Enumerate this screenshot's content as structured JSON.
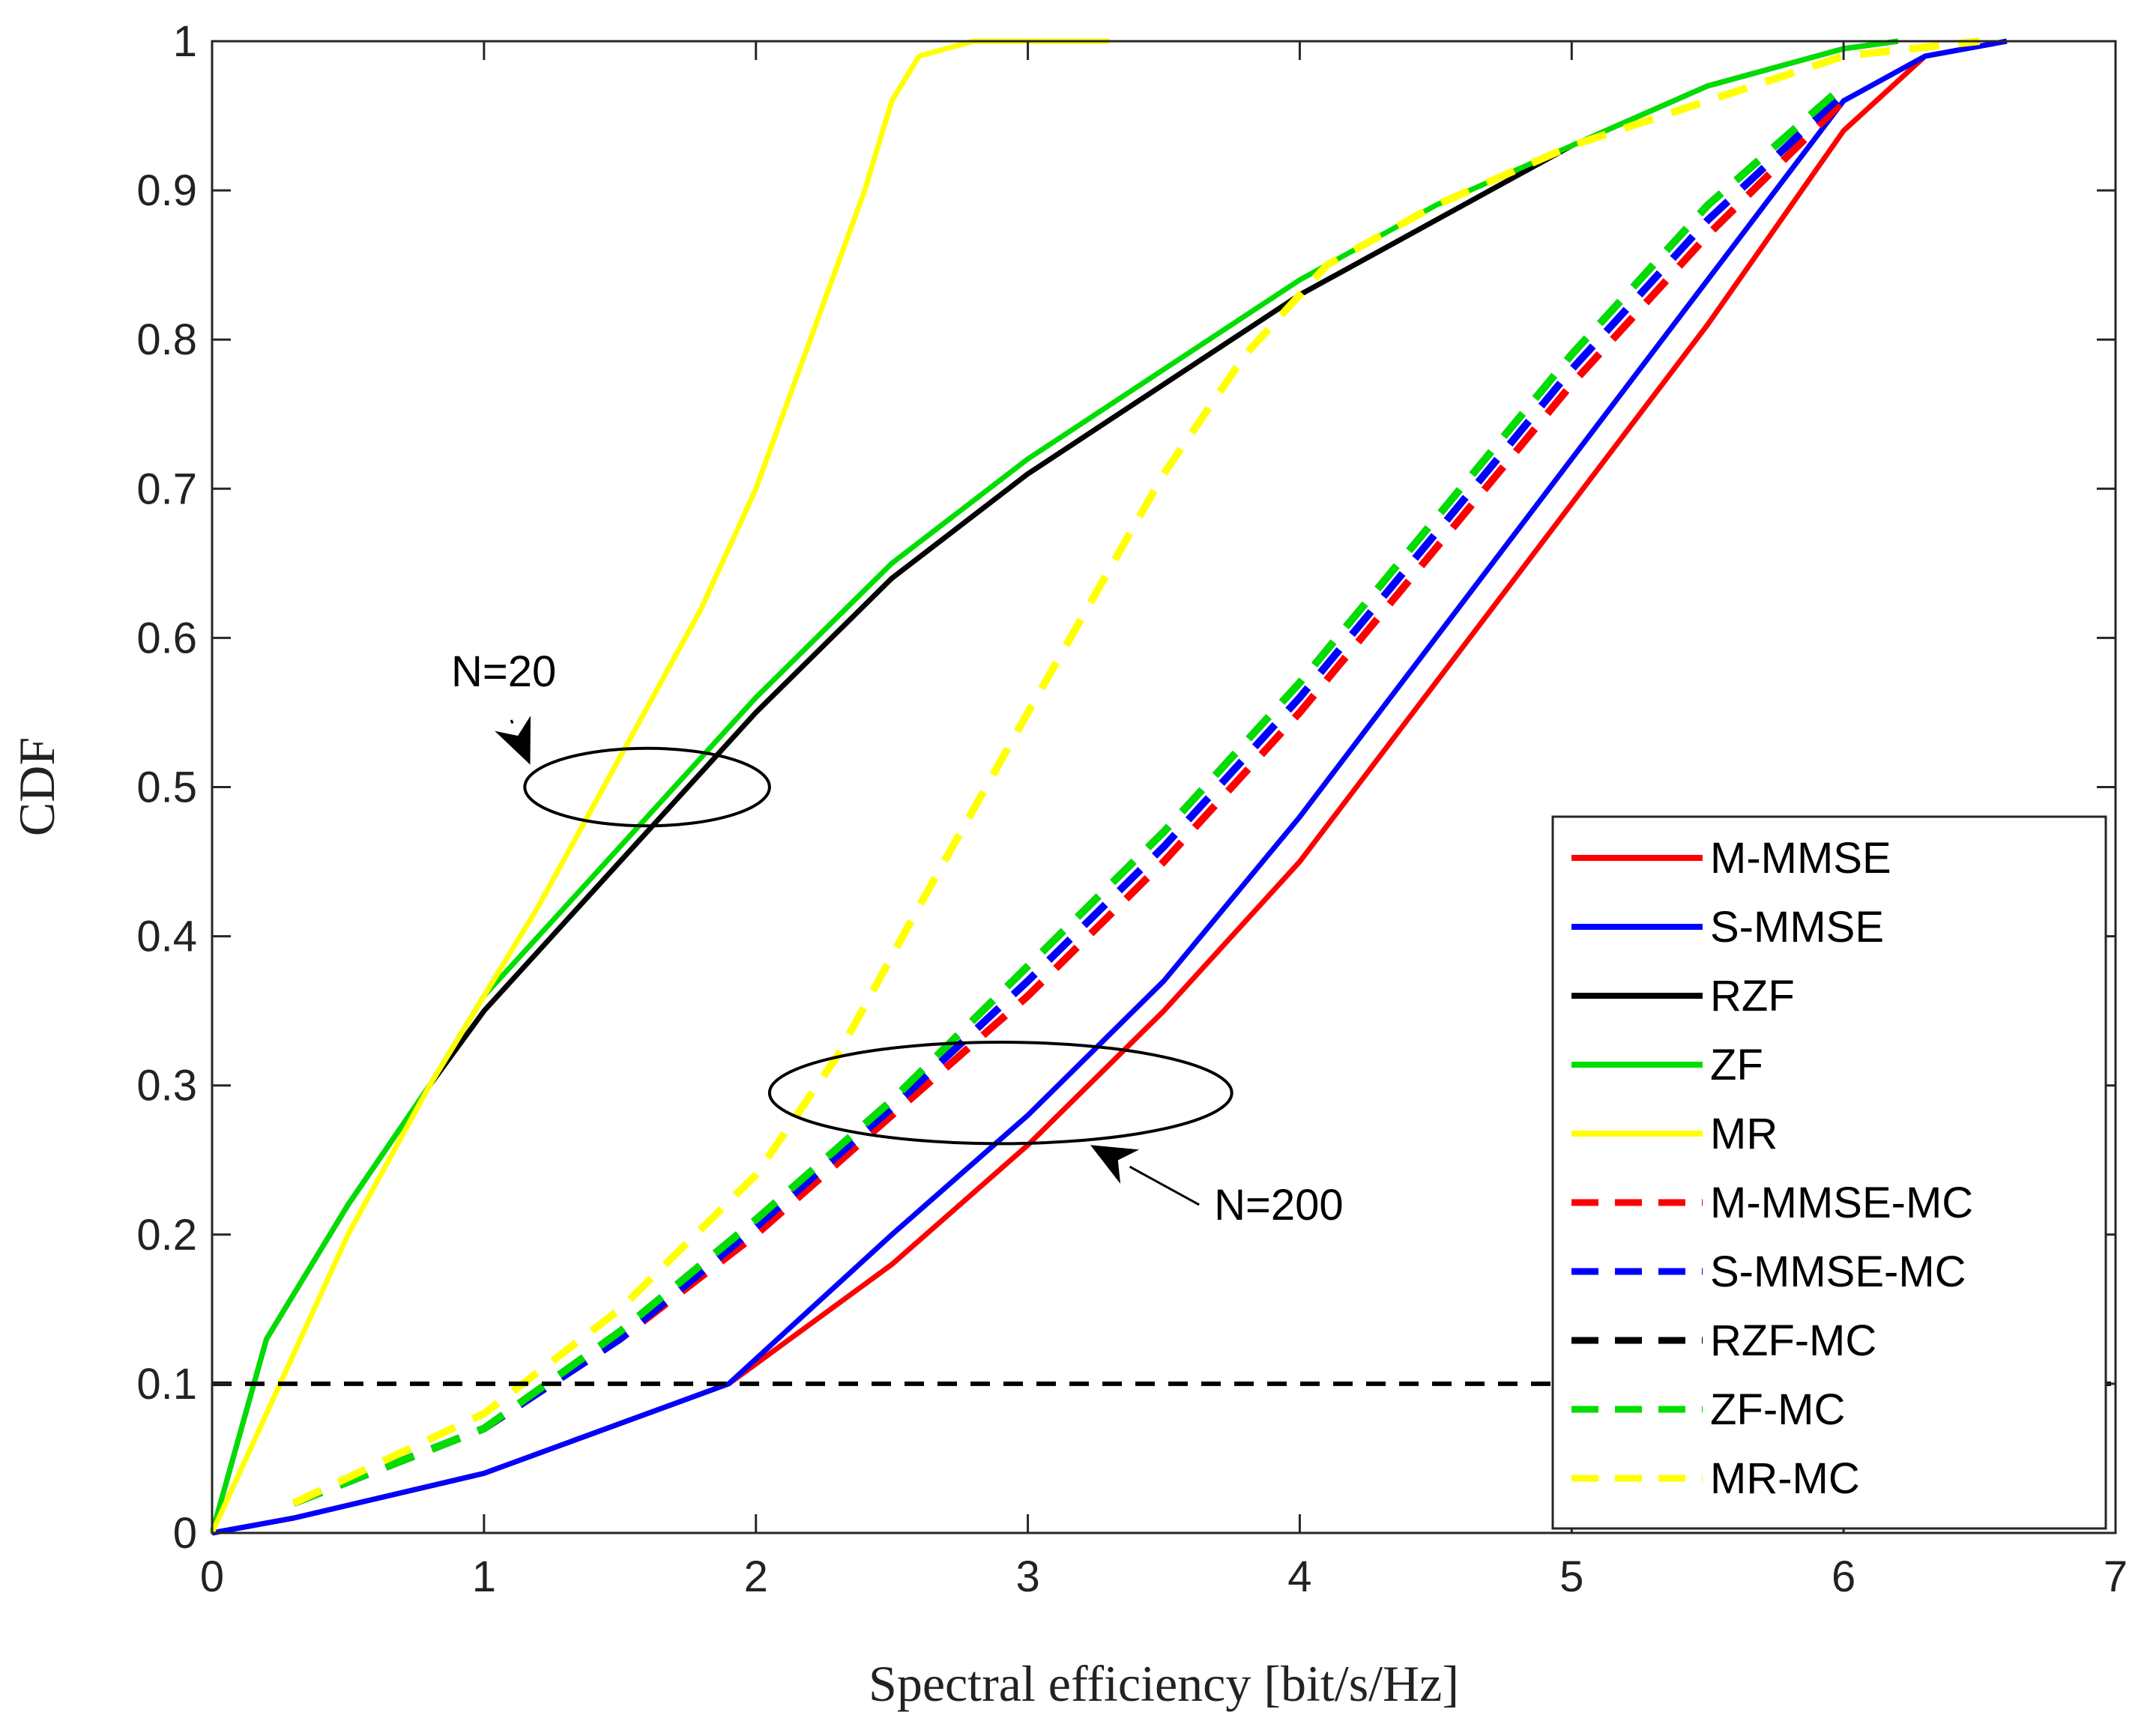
{
  "chart_data": {
    "type": "line",
    "title": "",
    "xlabel": "Spectral efficiency [bit/s/Hz]",
    "ylabel": "CDF",
    "xlim": [
      0,
      7
    ],
    "ylim": [
      0,
      1
    ],
    "xticks": [
      "0",
      "1",
      "2",
      "3",
      "4",
      "5",
      "6",
      "7"
    ],
    "yticks": [
      "0",
      "0.1",
      "0.2",
      "0.3",
      "0.4",
      "0.5",
      "0.6",
      "0.7",
      "0.8",
      "0.9",
      "1"
    ],
    "grid": false,
    "legend_position": "bottom-right",
    "series": [
      {
        "name": "M-MMSE",
        "color": "#ff0000",
        "dash": false,
        "x": [
          0,
          0.3,
          1,
          1.9,
          2.5,
          3,
          3.5,
          4,
          4.5,
          5,
          5.5,
          6,
          6.3,
          6.6
        ],
        "y": [
          0,
          0.01,
          0.04,
          0.1,
          0.18,
          0.26,
          0.35,
          0.45,
          0.57,
          0.69,
          0.81,
          0.94,
          0.99,
          1
        ]
      },
      {
        "name": "S-MMSE",
        "color": "#0000ff",
        "dash": false,
        "x": [
          0,
          0.3,
          1,
          1.9,
          2.5,
          3,
          3.5,
          4,
          4.5,
          5,
          5.5,
          6,
          6.3,
          6.6
        ],
        "y": [
          0,
          0.01,
          0.04,
          0.1,
          0.2,
          0.28,
          0.37,
          0.48,
          0.6,
          0.72,
          0.84,
          0.96,
          0.99,
          1
        ]
      },
      {
        "name": "RZF",
        "color": "#000000",
        "dash": false,
        "x": [
          0,
          0.2,
          0.5,
          0.8,
          1,
          1.5,
          2,
          2.5,
          3,
          3.5,
          4,
          4.5,
          5,
          5.5,
          6,
          6.2
        ],
        "y": [
          0,
          0.13,
          0.22,
          0.3,
          0.35,
          0.45,
          0.55,
          0.64,
          0.71,
          0.77,
          0.83,
          0.88,
          0.93,
          0.97,
          0.995,
          1
        ]
      },
      {
        "name": "ZF",
        "color": "#00dd00",
        "dash": false,
        "x": [
          0,
          0.2,
          0.5,
          0.8,
          1,
          1.5,
          2,
          2.5,
          3,
          3.5,
          4,
          4.5,
          5,
          5.5,
          6,
          6.2
        ],
        "y": [
          0,
          0.13,
          0.22,
          0.3,
          0.36,
          0.46,
          0.56,
          0.65,
          0.72,
          0.78,
          0.84,
          0.89,
          0.93,
          0.97,
          0.995,
          1
        ]
      },
      {
        "name": "MR",
        "color": "#ffff00",
        "dash": false,
        "x": [
          0,
          0.5,
          0.8,
          1,
          1.2,
          1.5,
          1.8,
          2,
          2.2,
          2.4,
          2.5,
          2.6,
          2.8,
          3.3
        ],
        "y": [
          0,
          0.2,
          0.3,
          0.36,
          0.42,
          0.52,
          0.62,
          0.7,
          0.8,
          0.9,
          0.96,
          0.99,
          1,
          1
        ]
      },
      {
        "name": "M-MMSE-MC",
        "color": "#ff0000",
        "dash": true,
        "x": [
          0.3,
          1,
          1.5,
          2,
          2.5,
          3,
          3.5,
          4,
          4.5,
          5,
          5.5,
          6
        ],
        "y": [
          0.02,
          0.07,
          0.13,
          0.2,
          0.28,
          0.36,
          0.45,
          0.55,
          0.66,
          0.77,
          0.87,
          0.96
        ]
      },
      {
        "name": "S-MMSE-MC",
        "color": "#0000ff",
        "dash": true,
        "x": [
          0.3,
          1,
          1.5,
          2,
          2.5,
          3,
          3.5,
          4,
          4.5,
          5,
          5.5,
          6
        ],
        "y": [
          0.02,
          0.07,
          0.13,
          0.205,
          0.285,
          0.37,
          0.46,
          0.56,
          0.67,
          0.78,
          0.88,
          0.965
        ]
      },
      {
        "name": "RZF-MC",
        "color": "#000000",
        "dash": true,
        "x": [
          0.3,
          1,
          1.5,
          2,
          2.5,
          3,
          3.5,
          4,
          4.5,
          5,
          5.5,
          6
        ],
        "y": [
          0.02,
          0.07,
          0.135,
          0.21,
          0.29,
          0.38,
          0.47,
          0.57,
          0.68,
          0.79,
          0.89,
          0.97
        ]
      },
      {
        "name": "ZF-MC",
        "color": "#00dd00",
        "dash": true,
        "x": [
          0.3,
          1,
          1.5,
          2,
          2.5,
          3,
          3.5,
          4,
          4.5,
          5,
          5.5,
          6
        ],
        "y": [
          0.02,
          0.07,
          0.135,
          0.21,
          0.29,
          0.38,
          0.47,
          0.57,
          0.68,
          0.79,
          0.89,
          0.97
        ]
      },
      {
        "name": "MR-MC",
        "color": "#ffff00",
        "dash": true,
        "x": [
          0.3,
          1,
          1.5,
          2,
          2.3,
          2.6,
          3,
          3.5,
          3.8,
          4.1,
          4.5,
          5,
          5.5,
          6,
          6.5
        ],
        "y": [
          0.02,
          0.08,
          0.15,
          0.24,
          0.32,
          0.42,
          0.55,
          0.71,
          0.79,
          0.85,
          0.89,
          0.93,
          0.96,
          0.99,
          1
        ]
      },
      {
        "name": "Reference 0.1",
        "color": "#000000",
        "dash": true,
        "x": [
          0,
          7
        ],
        "y": [
          0.1,
          0.1
        ]
      }
    ],
    "annotations": [
      {
        "text": "N=20",
        "ellipse_center": [
          1.6,
          0.5
        ],
        "ellipse_radius": [
          0.45,
          0.026
        ],
        "arrow_from": [
          1.1,
          0.545
        ],
        "arrow_to": [
          1.17,
          0.515
        ]
      },
      {
        "text": "N=200",
        "ellipse_center": [
          2.9,
          0.295
        ],
        "ellipse_radius": [
          0.85,
          0.034
        ],
        "arrow_from": [
          3.63,
          0.22
        ],
        "arrow_to": [
          3.23,
          0.26
        ]
      }
    ]
  }
}
